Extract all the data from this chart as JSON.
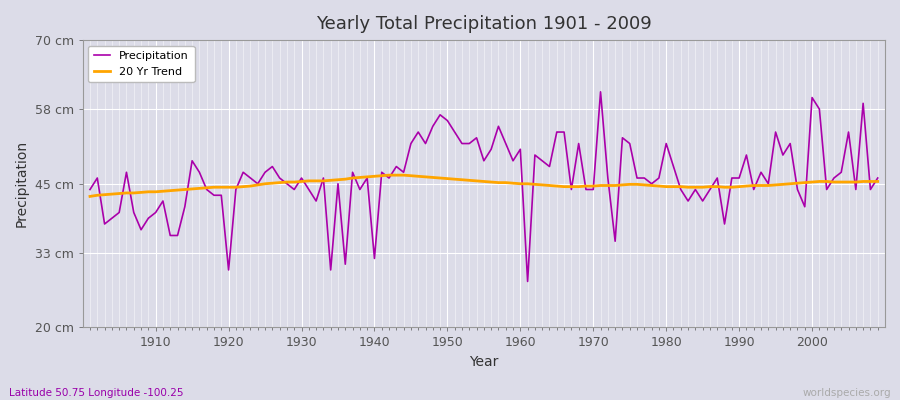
{
  "title": "Yearly Total Precipitation 1901 - 2009",
  "ylabel": "Precipitation",
  "xlabel": "Year",
  "subtitle": "Latitude 50.75 Longitude -100.25",
  "watermark": "worldspecies.org",
  "ylim": [
    20,
    70
  ],
  "yticks": [
    20,
    33,
    45,
    58,
    70
  ],
  "ytick_labels": [
    "20 cm",
    "33 cm",
    "45 cm",
    "58 cm",
    "70 cm"
  ],
  "bg_color": "#dcdce8",
  "plot_bg_color": "#dcdce8",
  "precip_color": "#aa00aa",
  "trend_color": "#FFA500",
  "precip_linewidth": 1.2,
  "trend_linewidth": 2.0,
  "years": [
    1901,
    1902,
    1903,
    1904,
    1905,
    1906,
    1907,
    1908,
    1909,
    1910,
    1911,
    1912,
    1913,
    1914,
    1915,
    1916,
    1917,
    1918,
    1919,
    1920,
    1921,
    1922,
    1923,
    1924,
    1925,
    1926,
    1927,
    1928,
    1929,
    1930,
    1931,
    1932,
    1933,
    1934,
    1935,
    1936,
    1937,
    1938,
    1939,
    1940,
    1941,
    1942,
    1943,
    1944,
    1945,
    1946,
    1947,
    1948,
    1949,
    1950,
    1951,
    1952,
    1953,
    1954,
    1955,
    1956,
    1957,
    1958,
    1959,
    1960,
    1961,
    1962,
    1963,
    1964,
    1965,
    1966,
    1967,
    1968,
    1969,
    1970,
    1971,
    1972,
    1973,
    1974,
    1975,
    1976,
    1977,
    1978,
    1979,
    1980,
    1981,
    1982,
    1983,
    1984,
    1985,
    1986,
    1987,
    1988,
    1989,
    1990,
    1991,
    1992,
    1993,
    1994,
    1995,
    1996,
    1997,
    1998,
    1999,
    2000,
    2001,
    2002,
    2003,
    2004,
    2005,
    2006,
    2007,
    2008,
    2009
  ],
  "precip": [
    44,
    46,
    38,
    39,
    40,
    47,
    40,
    37,
    39,
    40,
    42,
    36,
    36,
    41,
    49,
    47,
    44,
    43,
    43,
    30,
    44,
    47,
    46,
    45,
    47,
    48,
    46,
    45,
    44,
    46,
    44,
    42,
    46,
    30,
    45,
    31,
    47,
    44,
    46,
    32,
    47,
    46,
    48,
    47,
    52,
    54,
    52,
    55,
    57,
    56,
    54,
    52,
    52,
    53,
    49,
    51,
    55,
    52,
    49,
    51,
    28,
    50,
    49,
    48,
    54,
    54,
    44,
    52,
    44,
    44,
    61,
    46,
    35,
    53,
    52,
    46,
    46,
    45,
    46,
    52,
    48,
    44,
    42,
    44,
    42,
    44,
    46,
    38,
    46,
    46,
    50,
    44,
    47,
    45,
    54,
    50,
    52,
    44,
    41,
    60,
    58,
    44,
    46,
    47,
    54,
    44,
    59,
    44,
    46
  ],
  "trend": [
    42.8,
    43.0,
    43.1,
    43.2,
    43.3,
    43.4,
    43.4,
    43.5,
    43.6,
    43.6,
    43.7,
    43.8,
    43.9,
    44.0,
    44.1,
    44.2,
    44.3,
    44.4,
    44.4,
    44.4,
    44.4,
    44.5,
    44.6,
    44.8,
    45.0,
    45.1,
    45.2,
    45.3,
    45.3,
    45.4,
    45.5,
    45.5,
    45.5,
    45.6,
    45.7,
    45.8,
    46.0,
    46.1,
    46.2,
    46.3,
    46.4,
    46.5,
    46.5,
    46.5,
    46.4,
    46.3,
    46.2,
    46.1,
    46.0,
    45.9,
    45.8,
    45.7,
    45.6,
    45.5,
    45.4,
    45.3,
    45.2,
    45.2,
    45.1,
    45.0,
    45.0,
    44.9,
    44.8,
    44.7,
    44.6,
    44.5,
    44.5,
    44.5,
    44.6,
    44.6,
    44.7,
    44.7,
    44.7,
    44.8,
    44.9,
    44.9,
    44.8,
    44.7,
    44.6,
    44.5,
    44.5,
    44.5,
    44.4,
    44.4,
    44.4,
    44.5,
    44.5,
    44.4,
    44.4,
    44.5,
    44.6,
    44.7,
    44.7,
    44.7,
    44.8,
    44.9,
    45.0,
    45.1,
    45.2,
    45.3,
    45.4,
    45.4,
    45.3,
    45.3,
    45.3,
    45.3,
    45.4,
    45.4,
    45.4
  ]
}
